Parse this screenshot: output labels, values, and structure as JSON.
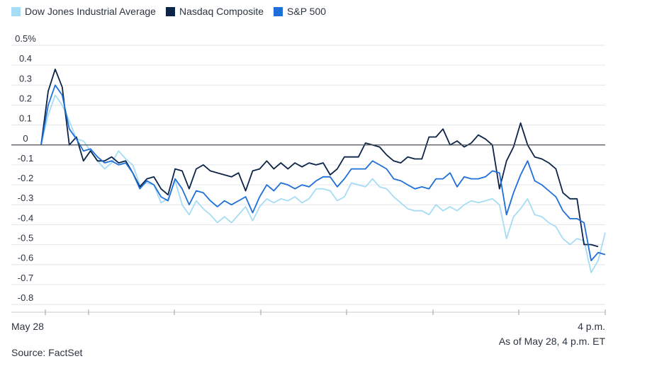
{
  "chart_data": {
    "type": "line",
    "title": "",
    "xlabel": "",
    "ylabel": "",
    "ylim": [
      -0.8,
      0.5
    ],
    "yticks": [
      {
        "value": 0.5,
        "label": "0.5%"
      },
      {
        "value": 0.4,
        "label": "0.4"
      },
      {
        "value": 0.3,
        "label": "0.3"
      },
      {
        "value": 0.2,
        "label": "0.2"
      },
      {
        "value": 0.1,
        "label": "0.1"
      },
      {
        "value": 0.0,
        "label": "0"
      },
      {
        "value": -0.1,
        "label": "-0.1"
      },
      {
        "value": -0.2,
        "label": "-0.2"
      },
      {
        "value": -0.3,
        "label": "-0.3"
      },
      {
        "value": -0.4,
        "label": "-0.4"
      },
      {
        "value": -0.5,
        "label": "-0.5"
      },
      {
        "value": -0.6,
        "label": "-0.6"
      },
      {
        "value": -0.7,
        "label": "-0.7"
      },
      {
        "value": -0.8,
        "label": "-0.8"
      }
    ],
    "x_start_label": "May 28",
    "x_end_label": "4 p.m.",
    "legend_position": "top-left",
    "grid": true,
    "series": [
      {
        "name": "Dow Jones Industrial Average",
        "color": "#a6dcf5",
        "values": [
          0.0,
          0.15,
          0.25,
          0.2,
          0.12,
          0.03,
          0.02,
          -0.03,
          -0.08,
          -0.12,
          -0.09,
          -0.03,
          -0.07,
          -0.1,
          -0.2,
          -0.19,
          -0.2,
          -0.29,
          -0.27,
          -0.18,
          -0.3,
          -0.35,
          -0.28,
          -0.32,
          -0.35,
          -0.39,
          -0.36,
          -0.39,
          -0.35,
          -0.31,
          -0.38,
          -0.31,
          -0.27,
          -0.29,
          -0.27,
          -0.28,
          -0.26,
          -0.29,
          -0.27,
          -0.22,
          -0.22,
          -0.23,
          -0.28,
          -0.26,
          -0.19,
          -0.2,
          -0.21,
          -0.17,
          -0.21,
          -0.22,
          -0.26,
          -0.29,
          -0.32,
          -0.33,
          -0.33,
          -0.35,
          -0.3,
          -0.33,
          -0.31,
          -0.33,
          -0.3,
          -0.28,
          -0.29,
          -0.28,
          -0.27,
          -0.3,
          -0.47,
          -0.36,
          -0.32,
          -0.27,
          -0.35,
          -0.36,
          -0.39,
          -0.41,
          -0.47,
          -0.5,
          -0.47,
          -0.48,
          -0.64,
          -0.58,
          -0.44
        ]
      },
      {
        "name": "Nasdaq Composite",
        "color": "#0b2447",
        "values": [
          0.0,
          0.27,
          0.38,
          0.29,
          0.0,
          0.04,
          -0.08,
          -0.03,
          -0.08,
          -0.08,
          -0.06,
          -0.09,
          -0.08,
          -0.14,
          -0.21,
          -0.17,
          -0.16,
          -0.22,
          -0.25,
          -0.12,
          -0.13,
          -0.22,
          -0.12,
          -0.1,
          -0.13,
          -0.14,
          -0.15,
          -0.16,
          -0.14,
          -0.23,
          -0.13,
          -0.12,
          -0.08,
          -0.12,
          -0.09,
          -0.12,
          -0.09,
          -0.11,
          -0.09,
          -0.1,
          -0.09,
          -0.15,
          -0.12,
          -0.06,
          -0.06,
          -0.06,
          0.01,
          0.0,
          -0.01,
          -0.05,
          -0.08,
          -0.09,
          -0.06,
          -0.07,
          -0.07,
          0.04,
          0.04,
          0.08,
          0.0,
          0.02,
          -0.01,
          0.01,
          0.05,
          0.03,
          0.0,
          -0.22,
          -0.08,
          -0.01,
          0.11,
          0.0,
          -0.06,
          -0.07,
          -0.09,
          -0.12,
          -0.24,
          -0.27,
          -0.27,
          -0.5,
          -0.5,
          -0.51
        ]
      },
      {
        "name": "S&P 500",
        "color": "#1e6fd9",
        "values": [
          0.0,
          0.2,
          0.3,
          0.25,
          0.08,
          0.03,
          -0.03,
          -0.02,
          -0.06,
          -0.09,
          -0.08,
          -0.1,
          -0.09,
          -0.14,
          -0.22,
          -0.18,
          -0.2,
          -0.26,
          -0.28,
          -0.17,
          -0.22,
          -0.3,
          -0.23,
          -0.24,
          -0.28,
          -0.31,
          -0.28,
          -0.3,
          -0.28,
          -0.26,
          -0.34,
          -0.26,
          -0.2,
          -0.23,
          -0.19,
          -0.2,
          -0.22,
          -0.2,
          -0.21,
          -0.18,
          -0.16,
          -0.16,
          -0.21,
          -0.17,
          -0.12,
          -0.12,
          -0.12,
          -0.08,
          -0.1,
          -0.12,
          -0.17,
          -0.18,
          -0.2,
          -0.22,
          -0.21,
          -0.22,
          -0.17,
          -0.17,
          -0.14,
          -0.21,
          -0.16,
          -0.17,
          -0.17,
          -0.16,
          -0.13,
          -0.14,
          -0.35,
          -0.24,
          -0.15,
          -0.08,
          -0.18,
          -0.2,
          -0.23,
          -0.26,
          -0.33,
          -0.37,
          -0.37,
          -0.39,
          -0.58,
          -0.54,
          -0.55
        ]
      }
    ]
  },
  "footer": {
    "as_of": "As of May 28, 4 p.m. ET",
    "source": "Source: FactSet"
  }
}
